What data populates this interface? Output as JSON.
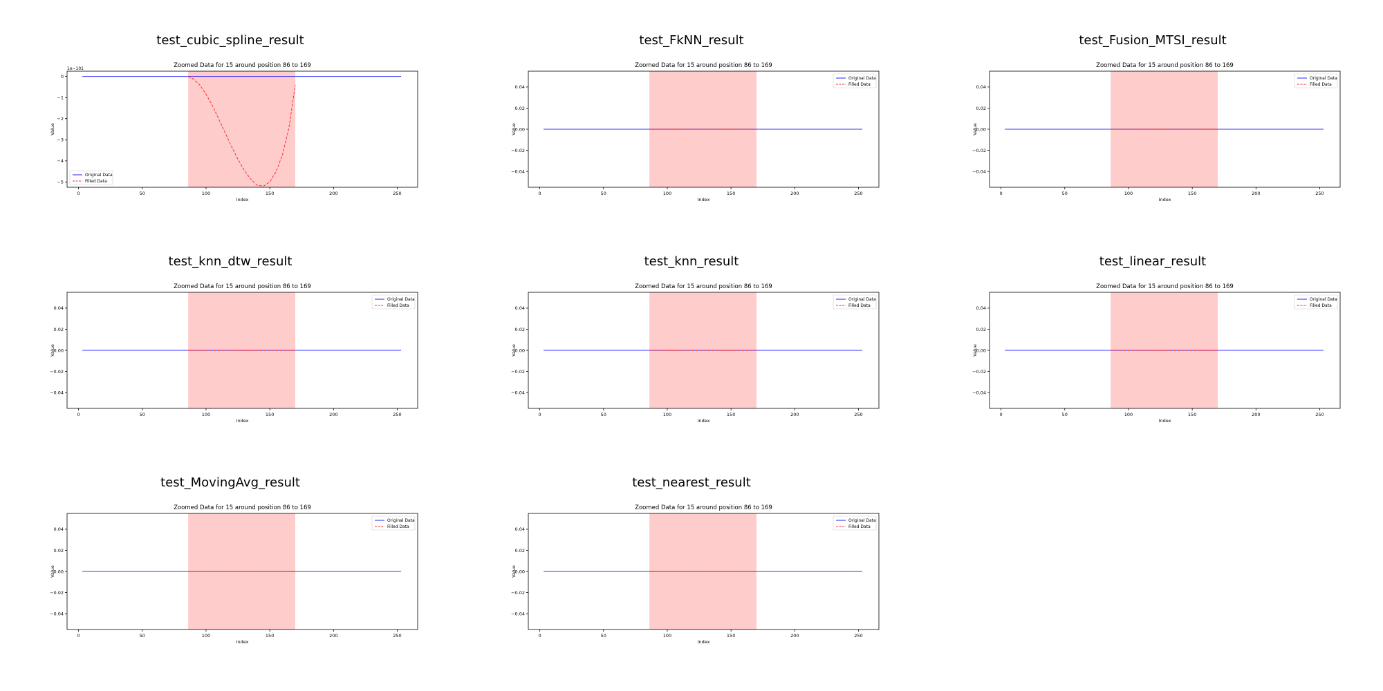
{
  "panels": [
    {
      "title": "test_cubic_spline_result",
      "chart_data": {
        "type": "line",
        "title": "Zoomed Data for 15 around position 86 to 169",
        "xlabel": "Index",
        "ylabel": "Value",
        "xlim": [
          -9,
          266
        ],
        "ylim": [
          -5.25,
          0.25
        ],
        "offset_text": "1e−101",
        "xticks": [
          0,
          50,
          100,
          150,
          200,
          250
        ],
        "yticks": [
          0,
          -1,
          -2,
          -3,
          -4,
          -5
        ],
        "ytick_labels": [
          "0",
          "−1",
          "−2",
          "−3",
          "−4",
          "−5"
        ],
        "highlight": [
          86,
          170
        ],
        "legend": {
          "position": "lower-left",
          "entries": [
            "Original Data",
            "Filled Data"
          ]
        },
        "series": [
          {
            "name": "Original Data",
            "color": "#0000ff",
            "style": "solid",
            "x": [
              3,
              253
            ],
            "y": [
              0,
              0
            ]
          },
          {
            "name": "Filled Data",
            "color": "#ff0000",
            "style": "dashed",
            "x": [
              86,
              90,
              95,
              100,
              105,
              110,
              115,
              120,
              125,
              130,
              135,
              140,
              145,
              150,
              155,
              160,
              165,
              170
            ],
            "y": [
              0,
              -0.12,
              -0.4,
              -0.84,
              -1.38,
              -2.02,
              -2.67,
              -3.32,
              -3.92,
              -4.45,
              -4.86,
              -5.15,
              -5.2,
              -5.0,
              -4.5,
              -3.7,
              -2.45,
              -0.4
            ]
          }
        ]
      }
    },
    {
      "title": "test_FkNN_result",
      "chart_data": {
        "type": "line",
        "title": "Zoomed Data for 15 around position 86 to 169",
        "xlabel": "Index",
        "ylabel": "Value",
        "xlim": [
          -9,
          266
        ],
        "ylim": [
          -0.055,
          0.055
        ],
        "xticks": [
          0,
          50,
          100,
          150,
          200,
          250
        ],
        "yticks": [
          0.04,
          0.02,
          0,
          -0.02,
          -0.04
        ],
        "ytick_labels": [
          "0.04",
          "0.02",
          "0.00",
          "−0.02",
          "−0.04"
        ],
        "highlight": [
          86,
          170
        ],
        "legend": {
          "position": "top-right",
          "entries": [
            "Original Data",
            "Filled Data"
          ]
        },
        "series": [
          {
            "name": "Original Data",
            "color": "#0000ff",
            "style": "solid",
            "x": [
              3,
              253
            ],
            "y": [
              0,
              0
            ]
          },
          {
            "name": "Filled Data",
            "color": "#ff0000",
            "style": "dashed",
            "x": [
              86,
              170
            ],
            "y": [
              0,
              0
            ]
          }
        ]
      }
    },
    {
      "title": "test_Fusion_MTSI_result",
      "chart_data": {
        "type": "line",
        "title": "Zoomed Data for 15 around position 86 to 169",
        "xlabel": "Index",
        "ylabel": "Value",
        "xlim": [
          -9,
          266
        ],
        "ylim": [
          -0.055,
          0.055
        ],
        "xticks": [
          0,
          50,
          100,
          150,
          200,
          250
        ],
        "yticks": [
          0.04,
          0.02,
          0,
          -0.02,
          -0.04
        ],
        "ytick_labels": [
          "0.04",
          "0.02",
          "0.00",
          "−0.02",
          "−0.04"
        ],
        "highlight": [
          86,
          170
        ],
        "legend": {
          "position": "top-right",
          "entries": [
            "Original Data",
            "Filled Data"
          ]
        },
        "series": [
          {
            "name": "Original Data",
            "color": "#0000ff",
            "style": "solid",
            "x": [
              3,
              253
            ],
            "y": [
              0,
              0
            ]
          },
          {
            "name": "Filled Data",
            "color": "#ff0000",
            "style": "dashed",
            "x": [
              86,
              170
            ],
            "y": [
              0,
              0
            ]
          }
        ]
      }
    },
    {
      "title": "test_knn_dtw_result",
      "chart_data": {
        "type": "line",
        "title": "Zoomed Data for 15 around position 86 to 169",
        "xlabel": "Index",
        "ylabel": "Value",
        "xlim": [
          -9,
          266
        ],
        "ylim": [
          -0.055,
          0.055
        ],
        "xticks": [
          0,
          50,
          100,
          150,
          200,
          250
        ],
        "yticks": [
          0.04,
          0.02,
          0,
          -0.02,
          -0.04
        ],
        "ytick_labels": [
          "0.04",
          "0.02",
          "0.00",
          "−0.02",
          "−0.04"
        ],
        "highlight": [
          86,
          170
        ],
        "legend": {
          "position": "top-right",
          "entries": [
            "Original Data",
            "Filled Data"
          ]
        },
        "series": [
          {
            "name": "Original Data",
            "color": "#0000ff",
            "style": "solid",
            "x": [
              3,
              253
            ],
            "y": [
              0,
              0
            ]
          },
          {
            "name": "Filled Data",
            "color": "#ff0000",
            "style": "dashed",
            "x": [
              86,
              170
            ],
            "y": [
              0,
              0
            ]
          }
        ]
      }
    },
    {
      "title": "test_knn_result",
      "chart_data": {
        "type": "line",
        "title": "Zoomed Data for 15 around position 86 to 169",
        "xlabel": "Index",
        "ylabel": "Value",
        "xlim": [
          -9,
          266
        ],
        "ylim": [
          -0.055,
          0.055
        ],
        "xticks": [
          0,
          50,
          100,
          150,
          200,
          250
        ],
        "yticks": [
          0.04,
          0.02,
          0,
          -0.02,
          -0.04
        ],
        "ytick_labels": [
          "0.04",
          "0.02",
          "0.00",
          "−0.02",
          "−0.04"
        ],
        "highlight": [
          86,
          170
        ],
        "legend": {
          "position": "top-right",
          "entries": [
            "Original Data",
            "Filled Data"
          ]
        },
        "series": [
          {
            "name": "Original Data",
            "color": "#0000ff",
            "style": "solid",
            "x": [
              3,
              253
            ],
            "y": [
              0,
              0
            ]
          },
          {
            "name": "Filled Data",
            "color": "#ff0000",
            "style": "dashed",
            "x": [
              86,
              170
            ],
            "y": [
              0,
              0
            ]
          }
        ]
      }
    },
    {
      "title": "test_linear_result",
      "chart_data": {
        "type": "line",
        "title": "Zoomed Data for 15 around position 86 to 169",
        "xlabel": "Index",
        "ylabel": "Value",
        "xlim": [
          -9,
          266
        ],
        "ylim": [
          -0.055,
          0.055
        ],
        "xticks": [
          0,
          50,
          100,
          150,
          200,
          250
        ],
        "yticks": [
          0.04,
          0.02,
          0,
          -0.02,
          -0.04
        ],
        "ytick_labels": [
          "0.04",
          "0.02",
          "0.00",
          "−0.02",
          "−0.04"
        ],
        "highlight": [
          86,
          170
        ],
        "legend": {
          "position": "top-right",
          "entries": [
            "Original Data",
            "Filled Data"
          ]
        },
        "series": [
          {
            "name": "Original Data",
            "color": "#0000ff",
            "style": "solid",
            "x": [
              3,
              253
            ],
            "y": [
              0,
              0
            ]
          },
          {
            "name": "Filled Data",
            "color": "#ff0000",
            "style": "dashed",
            "x": [
              86,
              170
            ],
            "y": [
              0,
              0
            ]
          }
        ]
      }
    },
    {
      "title": "test_MovingAvg_result",
      "chart_data": {
        "type": "line",
        "title": "Zoomed Data for 15 around position 86 to 169",
        "xlabel": "Index",
        "ylabel": "Value",
        "xlim": [
          -9,
          266
        ],
        "ylim": [
          -0.055,
          0.055
        ],
        "xticks": [
          0,
          50,
          100,
          150,
          200,
          250
        ],
        "yticks": [
          0.04,
          0.02,
          0,
          -0.02,
          -0.04
        ],
        "ytick_labels": [
          "0.04",
          "0.02",
          "0.00",
          "−0.02",
          "−0.04"
        ],
        "highlight": [
          86,
          170
        ],
        "legend": {
          "position": "top-right",
          "entries": [
            "Original Data",
            "Filled Data"
          ]
        },
        "series": [
          {
            "name": "Original Data",
            "color": "#0000ff",
            "style": "solid",
            "x": [
              3,
              253
            ],
            "y": [
              0,
              0
            ]
          },
          {
            "name": "Filled Data",
            "color": "#ff0000",
            "style": "dashed",
            "x": [
              86,
              170
            ],
            "y": [
              0,
              0
            ]
          }
        ]
      }
    },
    {
      "title": "test_nearest_result",
      "chart_data": {
        "type": "line",
        "title": "Zoomed Data for 15 around position 86 to 169",
        "xlabel": "Index",
        "ylabel": "Value",
        "xlim": [
          -9,
          266
        ],
        "ylim": [
          -0.055,
          0.055
        ],
        "xticks": [
          0,
          50,
          100,
          150,
          200,
          250
        ],
        "yticks": [
          0.04,
          0.02,
          0,
          -0.02,
          -0.04
        ],
        "ytick_labels": [
          "0.04",
          "0.02",
          "0.00",
          "−0.02",
          "−0.04"
        ],
        "highlight": [
          86,
          170
        ],
        "legend": {
          "position": "top-right",
          "entries": [
            "Original Data",
            "Filled Data"
          ]
        },
        "series": [
          {
            "name": "Original Data",
            "color": "#0000ff",
            "style": "solid",
            "x": [
              3,
              253
            ],
            "y": [
              0,
              0
            ]
          },
          {
            "name": "Filled Data",
            "color": "#ff0000",
            "style": "dashed",
            "x": [
              86,
              170
            ],
            "y": [
              0,
              0
            ]
          }
        ]
      }
    }
  ],
  "colors": {
    "highlight": "#ffcccc",
    "axis": "#000000",
    "background": "#ffffff"
  }
}
